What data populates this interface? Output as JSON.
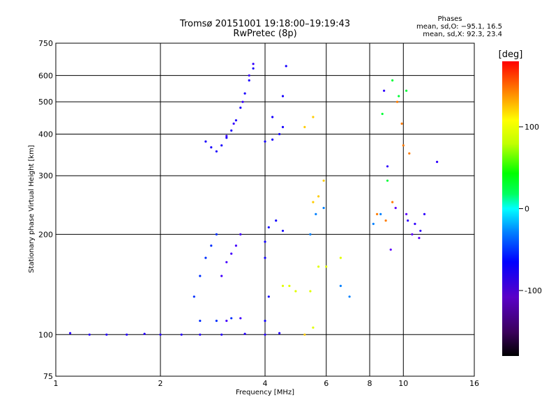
{
  "header": {
    "title_line1": "Tromsø 20151001 19:18:00–19:19:43",
    "title_line2": "RwPretec (8p)",
    "stats_heading": "Phases",
    "stats_o": "mean, sd,O: −95.1, 16.5",
    "stats_x": "mean, sd,X:  92.3, 23.4"
  },
  "chart_data": {
    "type": "scatter",
    "title": "Tromsø 20151001 19:18:00–19:19:43",
    "subtitle": "RwPretec (8p)",
    "xlabel": "Frequency [MHz]",
    "ylabel": "Stationary phase Virtual Height [km]",
    "xscale": "log",
    "yscale": "log",
    "xlim": [
      1,
      16
    ],
    "ylim": [
      75,
      750
    ],
    "xticks": [
      1,
      2,
      4,
      6,
      8,
      10,
      16
    ],
    "yticks": [
      75,
      100,
      200,
      300,
      400,
      500,
      600,
      750
    ],
    "grid": true,
    "colorbar": {
      "label": "[deg]",
      "range": [
        -180,
        180
      ],
      "ticks": [
        100,
        0,
        -100
      ]
    },
    "series": [
      {
        "color_value": -105,
        "points": [
          [
            1.1,
            101
          ],
          [
            1.25,
            100
          ],
          [
            1.4,
            100
          ],
          [
            1.6,
            100
          ],
          [
            1.8,
            100.5
          ],
          [
            2.0,
            100
          ],
          [
            2.3,
            100
          ],
          [
            2.6,
            100
          ],
          [
            3.0,
            100
          ],
          [
            3.5,
            100.5
          ],
          [
            4.0,
            100
          ],
          [
            4.4,
            101
          ]
        ]
      },
      {
        "color_value": -95,
        "points": [
          [
            2.7,
            380
          ],
          [
            2.8,
            365
          ],
          [
            2.9,
            355
          ],
          [
            3.0,
            370
          ],
          [
            3.1,
            390
          ],
          [
            3.2,
            410
          ],
          [
            3.3,
            440
          ],
          [
            3.4,
            480
          ],
          [
            3.5,
            530
          ],
          [
            3.6,
            580
          ],
          [
            3.7,
            630
          ]
        ]
      },
      {
        "color_value": -120,
        "points": [
          [
            3.1,
            395
          ],
          [
            3.25,
            430
          ],
          [
            3.45,
            500
          ],
          [
            3.6,
            600
          ],
          [
            3.7,
            650
          ]
        ]
      },
      {
        "color_value": -90,
        "points": [
          [
            4.0,
            380
          ],
          [
            4.2,
            385
          ],
          [
            4.4,
            400
          ],
          [
            4.5,
            420
          ],
          [
            4.2,
            450
          ],
          [
            4.5,
            520
          ],
          [
            4.6,
            640
          ]
        ]
      },
      {
        "color_value": -60,
        "points": [
          [
            2.5,
            130
          ],
          [
            2.6,
            150
          ],
          [
            2.7,
            170
          ],
          [
            2.8,
            185
          ],
          [
            2.9,
            200
          ],
          [
            2.6,
            110
          ],
          [
            2.9,
            110
          ],
          [
            3.2,
            112
          ]
        ]
      },
      {
        "color_value": -130,
        "points": [
          [
            3.0,
            150
          ],
          [
            3.1,
            165
          ],
          [
            3.2,
            175
          ],
          [
            3.3,
            185
          ],
          [
            3.4,
            200
          ],
          [
            3.1,
            110
          ],
          [
            3.4,
            112
          ]
        ]
      },
      {
        "color_value": -85,
        "points": [
          [
            4.0,
            190
          ],
          [
            4.1,
            210
          ],
          [
            4.3,
            220
          ],
          [
            4.5,
            205
          ],
          [
            4.0,
            170
          ],
          [
            4.1,
            130
          ],
          [
            4.0,
            110
          ]
        ]
      },
      {
        "color_value": 110,
        "points": [
          [
            4.5,
            140
          ],
          [
            4.7,
            140
          ],
          [
            4.9,
            135
          ],
          [
            5.4,
            135
          ],
          [
            5.7,
            160
          ],
          [
            6.0,
            160
          ],
          [
            6.6,
            170
          ],
          [
            5.5,
            105
          ]
        ]
      },
      {
        "color_value": 130,
        "points": [
          [
            5.2,
            420
          ],
          [
            5.5,
            450
          ],
          [
            5.7,
            260
          ],
          [
            5.9,
            290
          ],
          [
            5.5,
            250
          ],
          [
            5.2,
            100
          ]
        ]
      },
      {
        "color_value": -40,
        "points": [
          [
            5.6,
            230
          ],
          [
            5.9,
            240
          ],
          [
            5.4,
            200
          ],
          [
            6.6,
            140
          ],
          [
            7.0,
            130
          ],
          [
            8.2,
            215
          ],
          [
            8.6,
            230
          ]
        ]
      },
      {
        "color_value": 150,
        "points": [
          [
            8.4,
            230
          ],
          [
            8.9,
            220
          ],
          [
            9.3,
            250
          ],
          [
            9.9,
            430
          ],
          [
            10.0,
            370
          ],
          [
            9.6,
            500
          ],
          [
            10.4,
            350
          ]
        ]
      },
      {
        "color_value": -110,
        "points": [
          [
            8.8,
            540
          ],
          [
            9.0,
            320
          ],
          [
            10.3,
            220
          ],
          [
            10.8,
            215
          ],
          [
            11.2,
            205
          ],
          [
            11.5,
            230
          ],
          [
            12.5,
            330
          ]
        ]
      },
      {
        "color_value": -150,
        "points": [
          [
            9.5,
            240
          ],
          [
            10.2,
            230
          ],
          [
            10.6,
            200
          ],
          [
            11.1,
            195
          ],
          [
            9.2,
            180
          ]
        ]
      },
      {
        "color_value": 40,
        "points": [
          [
            8.7,
            460
          ],
          [
            9.3,
            580
          ],
          [
            9.7,
            520
          ],
          [
            10.2,
            540
          ],
          [
            9.0,
            290
          ]
        ]
      }
    ]
  }
}
